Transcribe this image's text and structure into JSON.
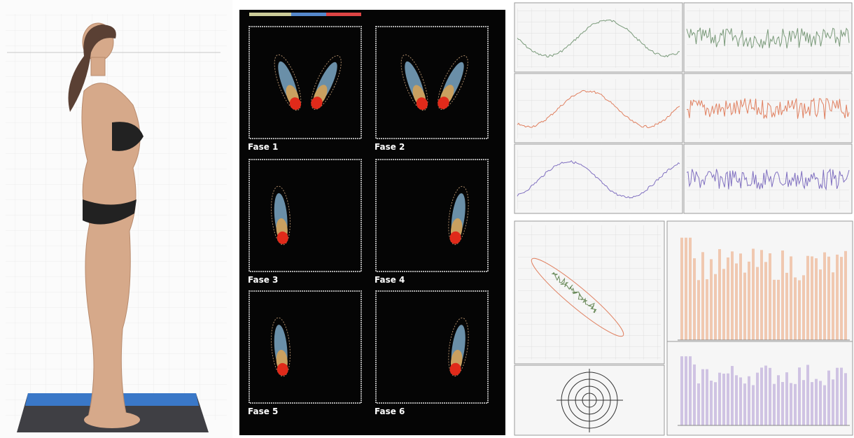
{
  "phases": [
    {
      "label": "Fase 1"
    },
    {
      "label": "Fase 2"
    },
    {
      "label": "Fase 3"
    },
    {
      "label": "Fase 4"
    },
    {
      "label": "Fase 5"
    },
    {
      "label": "Fase 6"
    }
  ]
}
